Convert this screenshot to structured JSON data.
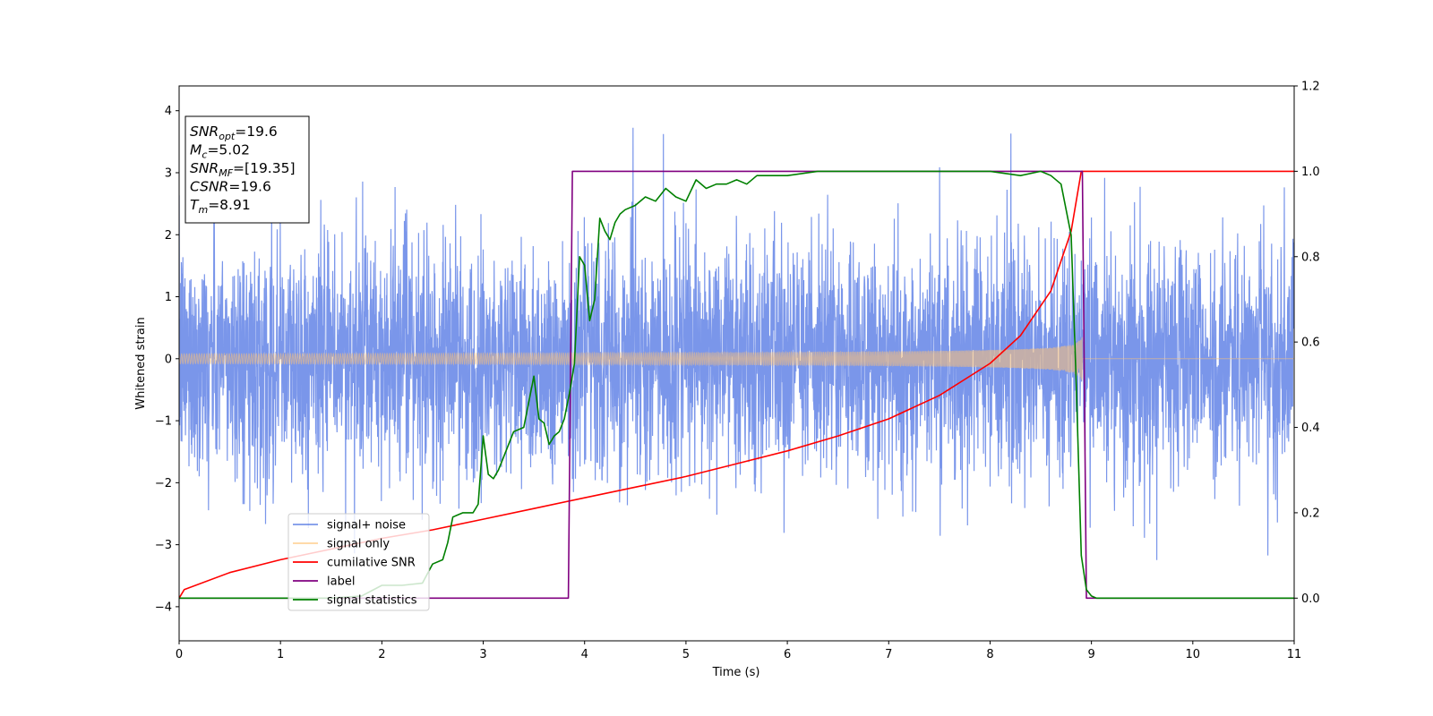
{
  "chart_data": {
    "type": "line",
    "title": "",
    "xlabel": "Time (s)",
    "ylabel": "Whitened strain",
    "xlim": [
      0,
      11
    ],
    "ylim": [
      -4.55,
      4.4
    ],
    "y2lim": [
      -0.1,
      1.2
    ],
    "x_ticks": [
      "0",
      "1",
      "2",
      "3",
      "4",
      "5",
      "6",
      "7",
      "8",
      "9",
      "10",
      "11"
    ],
    "y_ticks": [
      "-4",
      "-3",
      "-2",
      "-1",
      "0",
      "1",
      "2",
      "3",
      "4"
    ],
    "y2_ticks": [
      "0.0",
      "0.2",
      "0.4",
      "0.6",
      "0.8",
      "1.0",
      "1.2"
    ],
    "grid": false,
    "legend_position": "lower-left",
    "info_box": {
      "lines": [
        {
          "base": "SNR",
          "sub": "opt",
          "rest": "=19.6"
        },
        {
          "base": "M",
          "sub": "c",
          "rest": "=5.02"
        },
        {
          "base": "SNR",
          "sub": "MF",
          "rest": "=[19.35]"
        },
        {
          "base": "CSNR",
          "sub": "",
          "rest": "=19.6"
        },
        {
          "base": "T",
          "sub": "m",
          "rest": "=8.91"
        }
      ]
    },
    "series": [
      {
        "name": "signal+ noise",
        "color": "#4169e1",
        "axis": "left",
        "kind": "noise",
        "noise_std": 0.95,
        "x_range": [
          0,
          11
        ]
      },
      {
        "name": "signal only",
        "color": "#ffc374",
        "axis": "left",
        "kind": "chirp",
        "merger_time": 8.91,
        "amplitude_start": 0.08,
        "amplitude_merger": 0.95
      },
      {
        "name": "cumilative SNR",
        "color": "#ff0000",
        "axis": "right",
        "x": [
          0,
          0.05,
          0.5,
          1,
          1.5,
          2,
          2.5,
          3,
          3.5,
          4,
          4.5,
          5,
          5.5,
          6,
          6.5,
          7,
          7.5,
          8,
          8.3,
          8.6,
          8.8,
          8.9,
          9,
          11
        ],
        "values": [
          0,
          0.02,
          0.06,
          0.09,
          0.115,
          0.14,
          0.16,
          0.185,
          0.21,
          0.235,
          0.26,
          0.285,
          0.315,
          0.345,
          0.38,
          0.42,
          0.475,
          0.55,
          0.615,
          0.72,
          0.86,
          1.0,
          1.0,
          1.0
        ]
      },
      {
        "name": "label",
        "color": "#800080",
        "axis": "right",
        "x": [
          0,
          3.84,
          3.88,
          8.91,
          8.95,
          11
        ],
        "values": [
          0,
          0,
          1,
          1,
          0,
          0
        ]
      },
      {
        "name": "signal statistics",
        "color": "#008000",
        "axis": "right",
        "x": [
          0,
          1.5,
          1.8,
          2.0,
          2.2,
          2.4,
          2.5,
          2.6,
          2.65,
          2.7,
          2.8,
          2.9,
          2.95,
          3.0,
          3.05,
          3.1,
          3.15,
          3.2,
          3.3,
          3.4,
          3.5,
          3.55,
          3.6,
          3.65,
          3.7,
          3.75,
          3.8,
          3.85,
          3.9,
          3.95,
          4.0,
          4.05,
          4.1,
          4.15,
          4.2,
          4.25,
          4.3,
          4.35,
          4.4,
          4.5,
          4.6,
          4.7,
          4.8,
          4.9,
          5.0,
          5.1,
          5.2,
          5.3,
          5.4,
          5.5,
          5.6,
          5.7,
          5.8,
          5.9,
          6.0,
          6.3,
          6.6,
          7.0,
          7.5,
          8.0,
          8.3,
          8.5,
          8.6,
          8.7,
          8.8,
          8.85,
          8.9,
          8.95,
          9.0,
          9.05,
          9.2,
          11
        ],
        "values": [
          0,
          0,
          0.005,
          0.03,
          0.03,
          0.035,
          0.08,
          0.09,
          0.13,
          0.19,
          0.2,
          0.2,
          0.22,
          0.38,
          0.29,
          0.28,
          0.3,
          0.33,
          0.39,
          0.4,
          0.52,
          0.42,
          0.41,
          0.36,
          0.38,
          0.39,
          0.42,
          0.48,
          0.55,
          0.8,
          0.78,
          0.65,
          0.7,
          0.89,
          0.86,
          0.84,
          0.88,
          0.9,
          0.91,
          0.92,
          0.94,
          0.93,
          0.96,
          0.94,
          0.93,
          0.98,
          0.96,
          0.97,
          0.97,
          0.98,
          0.97,
          0.99,
          0.99,
          0.99,
          0.99,
          1.0,
          1.0,
          1.0,
          1.0,
          1.0,
          0.99,
          1.0,
          0.99,
          0.97,
          0.85,
          0.5,
          0.1,
          0.02,
          0.005,
          0.0,
          0.0,
          0.0
        ]
      }
    ]
  }
}
